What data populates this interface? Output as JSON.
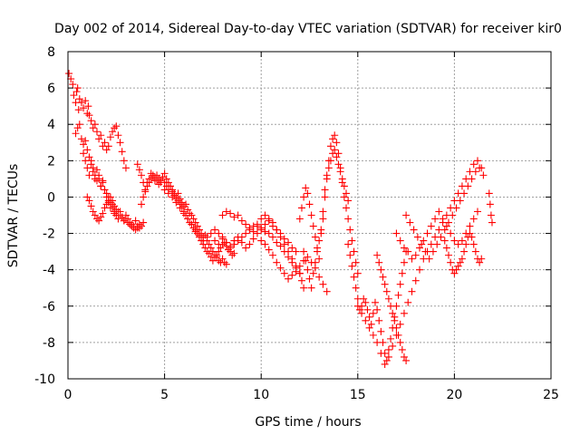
{
  "chart_data": {
    "type": "scatter",
    "title": "Day 002 of 2014, Sidereal Day-to-day VTEC variation (SDTVAR) for receiver kir0",
    "xlabel": "GPS time / hours",
    "ylabel": "SDTVAR / TECUs",
    "xlim": [
      0,
      25
    ],
    "ylim": [
      -10,
      8
    ],
    "xticks": [
      0,
      5,
      10,
      15,
      20,
      25
    ],
    "yticks": [
      -10,
      -8,
      -6,
      -4,
      -2,
      0,
      2,
      4,
      6,
      8
    ],
    "xtick_labels": [
      "0",
      "5",
      "10",
      "15",
      "20",
      "25"
    ],
    "ytick_labels": [
      "-10",
      "-8",
      "-6",
      "-4",
      "-2",
      "0",
      "2",
      "4",
      "6",
      "8"
    ],
    "grid": true,
    "marker": "+",
    "color": "#ff0000",
    "series": [
      {
        "name": "SDTVAR",
        "x": [
          0.05,
          0.15,
          0.25,
          0.3,
          0.4,
          0.45,
          0.5,
          0.55,
          0.6,
          0.7,
          0.8,
          0.9,
          1.0,
          1.05,
          1.1,
          1.2,
          1.3,
          1.4,
          1.5,
          1.6,
          1.7,
          1.8,
          1.9,
          2.0,
          2.1,
          2.2,
          2.3,
          2.4,
          2.5,
          2.6,
          2.7,
          2.8,
          2.9,
          3.0,
          0.4,
          0.5,
          0.6,
          0.7,
          0.8,
          0.9,
          1.0,
          1.1,
          1.2,
          1.3,
          1.4,
          1.5,
          1.6,
          1.7,
          1.8,
          1.9,
          2.0,
          2.1,
          2.2,
          2.3,
          2.4,
          2.5,
          2.6,
          2.7,
          2.8,
          2.9,
          3.0,
          3.1,
          3.2,
          3.3,
          3.4,
          3.5,
          3.6,
          3.7,
          0.8,
          0.9,
          1.0,
          1.1,
          1.2,
          1.3,
          1.4,
          1.5,
          1.6,
          1.7,
          1.8,
          1.9,
          2.0,
          2.1,
          2.2,
          2.3,
          2.4,
          2.5,
          1.0,
          1.1,
          1.2,
          1.3,
          1.4,
          1.5,
          1.6,
          1.7,
          1.8,
          1.9,
          2.0,
          2.1,
          2.2,
          2.3,
          2.4,
          2.5,
          2.6,
          2.7,
          2.8,
          2.9,
          3.0,
          3.1,
          3.2,
          3.3,
          3.4,
          3.5,
          3.6,
          3.7,
          3.8,
          3.9,
          3.6,
          3.7,
          3.8,
          3.9,
          4.0,
          4.1,
          4.2,
          4.3,
          4.4,
          4.5,
          4.6,
          4.7,
          4.8,
          4.9,
          5.0,
          5.1,
          5.2,
          5.3,
          5.4,
          5.5,
          5.6,
          5.7,
          5.8,
          5.9,
          6.0,
          6.1,
          6.2,
          6.3,
          6.4,
          6.5,
          6.6,
          6.7,
          6.8,
          6.9,
          7.0,
          7.1,
          7.2,
          7.3,
          7.4,
          7.5,
          7.6,
          7.7,
          7.8,
          7.9,
          8.0,
          8.1,
          8.2,
          3.8,
          3.9,
          4.0,
          4.1,
          4.2,
          4.3,
          4.4,
          4.5,
          4.6,
          4.7,
          4.8,
          4.9,
          5.0,
          5.1,
          5.2,
          5.3,
          5.4,
          5.5,
          5.6,
          5.7,
          5.8,
          5.9,
          6.0,
          6.1,
          6.2,
          6.3,
          6.4,
          6.5,
          6.6,
          6.7,
          6.8,
          6.9,
          7.0,
          7.1,
          7.2,
          7.3,
          7.4,
          7.5,
          7.6,
          7.7,
          7.8,
          7.9,
          8.0,
          8.1,
          8.2,
          8.3,
          8.4,
          8.5,
          8.6,
          5.0,
          5.2,
          5.4,
          5.6,
          5.8,
          6.0,
          6.2,
          6.4,
          6.6,
          6.8,
          7.0,
          7.2,
          7.4,
          7.6,
          7.8,
          8.0,
          8.2,
          8.4,
          8.6,
          8.8,
          9.0,
          9.2,
          9.4,
          9.6,
          9.8,
          10.0,
          10.2,
          10.4,
          10.6,
          10.8,
          11.0,
          11.2,
          11.4,
          11.6,
          11.8,
          8.0,
          8.2,
          8.4,
          8.6,
          8.8,
          9.0,
          9.2,
          9.4,
          9.6,
          9.8,
          10.0,
          10.2,
          10.4,
          10.6,
          10.8,
          11.0,
          11.2,
          11.4,
          11.6,
          11.8,
          12.0,
          12.1,
          12.2,
          7.6,
          7.8,
          8.0,
          8.2,
          8.4,
          8.6,
          8.8,
          9.0,
          9.2,
          9.4,
          9.6,
          9.8,
          10.0,
          10.2,
          10.4,
          10.6,
          10.8,
          11.0,
          11.2,
          11.4,
          11.6,
          11.8,
          12.0,
          10.0,
          10.2,
          10.4,
          10.6,
          10.8,
          11.0,
          11.2,
          11.4,
          11.6,
          11.8,
          12.0,
          12.2,
          12.4,
          12.6,
          12.8,
          13.0,
          13.2,
          13.4,
          12.0,
          12.1,
          12.2,
          12.3,
          12.4,
          12.5,
          12.6,
          12.7,
          12.8,
          12.9,
          13.0,
          13.1,
          13.2,
          13.3,
          13.4,
          13.5,
          13.6,
          13.7,
          13.8,
          13.9,
          14.0,
          14.1,
          14.2,
          14.3,
          14.4,
          14.5,
          12.2,
          12.3,
          12.4,
          12.5,
          12.6,
          12.7,
          12.8,
          12.9,
          13.0,
          13.1,
          13.2,
          13.3,
          13.4,
          13.5,
          13.6,
          13.7,
          13.8,
          13.9,
          14.0,
          14.1,
          14.2,
          14.3,
          14.4,
          14.5,
          14.6,
          14.7,
          14.8,
          14.9,
          15.0,
          14.5,
          14.6,
          14.7,
          14.8,
          14.9,
          15.0,
          15.1,
          15.2,
          15.3,
          15.4,
          15.5,
          15.6,
          15.7,
          15.8,
          15.9,
          16.0,
          16.1,
          16.2,
          16.3,
          16.4,
          16.5,
          16.6,
          16.7,
          16.8,
          16.9,
          17.0,
          17.1,
          17.2,
          17.3,
          17.4,
          17.5,
          15.0,
          15.2,
          15.4,
          15.6,
          15.8,
          16.0,
          16.2,
          16.4,
          16.6,
          16.8,
          17.0,
          17.2,
          17.4,
          17.6,
          17.8,
          18.0,
          18.2,
          18.4,
          18.6,
          18.8,
          19.0,
          19.2,
          19.4,
          19.6,
          19.8,
          20.0,
          20.2,
          20.4,
          20.6,
          20.8,
          21.0,
          21.2,
          21.4,
          16.0,
          16.1,
          16.2,
          16.3,
          16.4,
          16.5,
          16.6,
          16.7,
          16.8,
          16.9,
          17.0,
          17.1,
          17.2,
          17.3,
          17.4,
          17.5,
          17.0,
          17.2,
          17.4,
          17.6,
          17.8,
          18.0,
          18.2,
          18.4,
          18.6,
          18.8,
          19.0,
          19.2,
          19.4,
          19.6,
          19.8,
          20.0,
          20.2,
          20.4,
          20.6,
          20.8,
          21.0,
          21.2,
          17.5,
          17.7,
          17.9,
          18.1,
          18.3,
          18.5,
          18.7,
          18.9,
          19.1,
          19.3,
          19.5,
          19.7,
          19.9,
          20.1,
          20.3,
          20.5,
          20.7,
          20.9,
          21.1,
          21.3,
          21.5,
          19.5,
          19.6,
          19.7,
          19.8,
          19.9,
          20.0,
          20.1,
          20.2,
          20.3,
          20.4,
          20.5,
          20.6,
          20.7,
          20.8,
          20.9,
          21.0,
          21.1,
          21.2,
          21.3,
          21.4,
          21.8,
          21.85,
          21.9,
          21.95
        ],
        "y": [
          6.8,
          6.5,
          6.2,
          5.6,
          5.2,
          5.8,
          6.0,
          4.8,
          5.4,
          5.2,
          4.9,
          5.3,
          4.6,
          5.0,
          4.5,
          4.2,
          3.8,
          4.0,
          3.6,
          3.2,
          3.4,
          2.8,
          3.0,
          2.6,
          2.8,
          3.3,
          3.6,
          3.8,
          3.9,
          3.4,
          3.0,
          2.5,
          2.0,
          1.6,
          3.5,
          3.8,
          4.0,
          3.2,
          2.9,
          3.1,
          2.6,
          2.2,
          2.0,
          1.6,
          1.2,
          1.5,
          1.0,
          0.6,
          0.8,
          0.4,
          0.0,
          -0.3,
          -0.6,
          -0.4,
          -0.9,
          -1.0,
          -1.2,
          -0.8,
          -1.1,
          -1.3,
          -1.0,
          -1.2,
          -1.4,
          -1.5,
          -1.6,
          -1.3,
          -1.6,
          -1.7,
          2.4,
          2.0,
          1.6,
          1.2,
          1.8,
          1.4,
          1.0,
          0.9,
          1.2,
          0.6,
          0.9,
          0.4,
          0.2,
          0.0,
          -0.3,
          -0.6,
          -0.8,
          -1.0,
          0.0,
          -0.2,
          -0.5,
          -0.8,
          -1.0,
          -1.2,
          -1.3,
          -1.1,
          -0.9,
          -0.6,
          -0.4,
          -0.2,
          0.0,
          -0.2,
          -0.5,
          -0.7,
          -0.8,
          -1.0,
          -1.1,
          -1.3,
          -1.2,
          -1.4,
          -1.5,
          -1.6,
          -1.7,
          -1.8,
          -1.7,
          -1.5,
          -1.6,
          -1.4,
          1.8,
          1.5,
          1.2,
          0.8,
          0.4,
          0.8,
          1.0,
          1.3,
          1.1,
          0.9,
          1.2,
          1.0,
          0.8,
          1.1,
          1.3,
          1.0,
          0.8,
          0.6,
          0.4,
          0.2,
          0.0,
          0.2,
          -0.1,
          -0.3,
          -0.5,
          -0.4,
          -0.7,
          -0.9,
          -1.0,
          -1.2,
          -1.4,
          -1.6,
          -1.8,
          -2.0,
          -2.2,
          -2.1,
          -2.4,
          -2.6,
          -2.8,
          -3.0,
          -3.2,
          -3.3,
          -3.5,
          -3.6,
          -3.4,
          -3.6,
          -3.7,
          -0.4,
          0.0,
          0.3,
          0.6,
          0.8,
          1.0,
          1.2,
          1.1,
          0.9,
          0.7,
          0.9,
          1.1,
          0.8,
          0.6,
          0.4,
          0.6,
          0.3,
          0.1,
          -0.1,
          -0.2,
          -0.4,
          -0.6,
          -0.8,
          -1.0,
          -1.2,
          -1.4,
          -1.5,
          -1.7,
          -1.9,
          -2.0,
          -2.2,
          -2.4,
          -2.6,
          -2.8,
          -3.0,
          -3.1,
          -3.3,
          -3.5,
          -3.3,
          -3.2,
          -3.0,
          -2.8,
          -2.6,
          -2.5,
          -2.7,
          -2.9,
          -3.0,
          -3.2,
          -3.1,
          0.4,
          0.2,
          0.0,
          -0.3,
          -0.6,
          -0.9,
          -1.2,
          -1.5,
          -1.8,
          -2.1,
          -2.4,
          -2.2,
          -2.0,
          -2.4,
          -2.6,
          -2.3,
          -2.5,
          -2.7,
          -2.4,
          -2.2,
          -2.5,
          -2.8,
          -2.6,
          -2.3,
          -2.0,
          -1.8,
          -1.5,
          -1.3,
          -1.6,
          -1.8,
          -2.0,
          -2.3,
          -2.5,
          -2.8,
          -3.0,
          -1.0,
          -0.8,
          -0.9,
          -1.1,
          -1.0,
          -1.3,
          -1.5,
          -1.7,
          -1.9,
          -1.6,
          -1.2,
          -1.0,
          -1.2,
          -1.4,
          -1.8,
          -2.2,
          -2.6,
          -3.0,
          -3.4,
          -3.8,
          -4.2,
          -4.6,
          -5.0,
          -1.8,
          -2.0,
          -2.2,
          -2.5,
          -2.8,
          -2.6,
          -2.4,
          -2.2,
          -2.0,
          -1.8,
          -1.6,
          -1.5,
          -1.7,
          -1.9,
          -2.0,
          -2.2,
          -2.5,
          -2.7,
          -3.0,
          -3.3,
          -3.6,
          -3.9,
          -4.2,
          -2.4,
          -2.6,
          -2.9,
          -3.2,
          -3.6,
          -3.9,
          -4.2,
          -4.5,
          -4.3,
          -4.1,
          -3.8,
          -3.5,
          -3.3,
          -3.6,
          -3.9,
          -4.4,
          -4.8,
          -5.2,
          -1.2,
          -0.6,
          0.0,
          0.5,
          0.2,
          -0.4,
          -1.0,
          -1.6,
          -2.2,
          -2.8,
          -3.4,
          -2.0,
          -0.8,
          0.4,
          1.2,
          1.6,
          2.0,
          2.4,
          2.6,
          2.2,
          1.8,
          1.4,
          1.0,
          0.6,
          0.2,
          -0.2,
          -3.0,
          -3.5,
          -4.0,
          -4.5,
          -5.0,
          -4.2,
          -3.6,
          -3.0,
          -2.4,
          -1.8,
          -1.2,
          0.0,
          1.0,
          2.0,
          2.8,
          3.2,
          3.4,
          3.0,
          2.4,
          1.6,
          0.8,
          0.0,
          -0.6,
          -1.2,
          -1.8,
          -2.4,
          -3.0,
          -3.6,
          -4.2,
          -2.6,
          -3.2,
          -3.8,
          -4.4,
          -5.0,
          -5.6,
          -6.2,
          -6.0,
          -5.6,
          -5.8,
          -6.2,
          -6.6,
          -7.0,
          -6.4,
          -5.8,
          -6.2,
          -6.8,
          -7.4,
          -8.0,
          -8.6,
          -9.0,
          -8.4,
          -7.8,
          -7.2,
          -6.6,
          -6.0,
          -5.4,
          -4.8,
          -4.2,
          -3.6,
          -3.0,
          -6.0,
          -6.4,
          -6.8,
          -7.2,
          -7.6,
          -8.0,
          -8.6,
          -9.2,
          -8.8,
          -8.2,
          -7.6,
          -7.0,
          -6.4,
          -5.8,
          -5.2,
          -4.6,
          -4.0,
          -3.4,
          -3.0,
          -2.6,
          -2.2,
          -1.8,
          -1.4,
          -1.0,
          -0.6,
          -0.2,
          0.2,
          0.6,
          1.0,
          1.4,
          1.8,
          2.0,
          1.6,
          -3.2,
          -3.6,
          -4.0,
          -4.4,
          -4.8,
          -5.2,
          -5.6,
          -6.0,
          -6.4,
          -6.8,
          -7.2,
          -7.6,
          -8.0,
          -8.4,
          -8.8,
          -9.0,
          -2.0,
          -2.4,
          -2.8,
          -3.0,
          -3.4,
          -3.2,
          -2.8,
          -2.4,
          -2.0,
          -1.6,
          -1.2,
          -0.8,
          -1.2,
          -1.6,
          -2.0,
          -2.4,
          -2.6,
          -2.4,
          -2.0,
          -1.6,
          -1.2,
          -0.8,
          -1.0,
          -1.4,
          -1.8,
          -2.2,
          -2.6,
          -3.0,
          -3.4,
          -3.0,
          -2.6,
          -2.2,
          -1.8,
          -1.4,
          -1.0,
          -0.6,
          -0.2,
          0.2,
          0.6,
          1.0,
          1.4,
          1.6,
          1.2,
          -2.4,
          -2.8,
          -3.2,
          -3.6,
          -4.0,
          -4.2,
          -4.0,
          -3.8,
          -3.6,
          -3.4,
          -3.0,
          -2.6,
          -2.2,
          -2.0,
          -2.2,
          -2.6,
          -3.0,
          -3.4,
          -3.6,
          -3.4,
          0.2,
          -0.4,
          -1.0,
          -1.4
        ]
      }
    ]
  }
}
